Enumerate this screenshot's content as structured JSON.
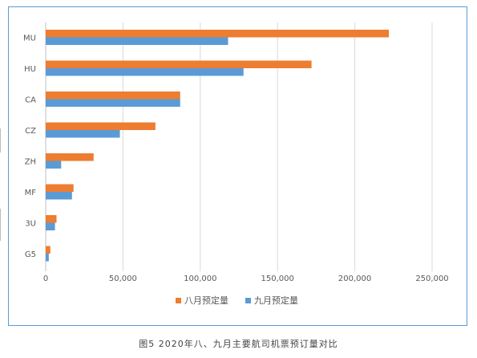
{
  "colors": {
    "frame": "#5b9bd5",
    "grid": "#d9d9d9",
    "axis_text": "#595959",
    "august": "#ed7d31",
    "september": "#5b9bd5"
  },
  "caption": "图5  2020年八、九月主要航司机票预订量对比",
  "chart_data": {
    "type": "bar",
    "orientation": "horizontal",
    "title": "",
    "categories": [
      "MU",
      "HU",
      "CA",
      "CZ",
      "ZH",
      "MF",
      "3U",
      "G5"
    ],
    "series": [
      {
        "name": "八月预定量",
        "color": "#ed7d31",
        "values": [
          222000,
          172000,
          87000,
          71000,
          31000,
          18000,
          7000,
          3000
        ]
      },
      {
        "name": "九月预定量",
        "color": "#5b9bd5",
        "values": [
          118000,
          128000,
          87000,
          48000,
          10000,
          17000,
          6000,
          2000
        ]
      }
    ],
    "x_ticks": [
      0,
      50000,
      100000,
      150000,
      200000,
      250000
    ],
    "x_tick_labels": [
      "0",
      "50,000",
      "100,000",
      "150,000",
      "200,000",
      "250,000"
    ],
    "xlim": [
      0,
      250000
    ],
    "grid": true,
    "legend_position": "bottom"
  }
}
